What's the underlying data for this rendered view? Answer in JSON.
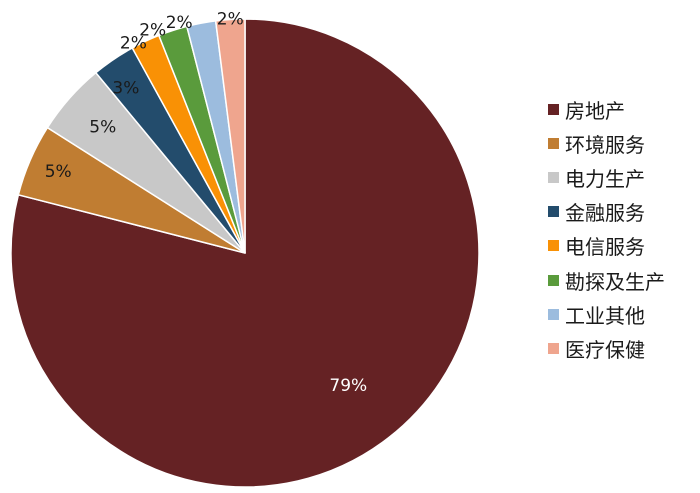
{
  "chart_data": {
    "type": "pie",
    "title": "",
    "start": "12 o'clock, clockwise",
    "legend_position": "right",
    "categories": [
      "房地产",
      "环境服务",
      "电力生产",
      "金融服务",
      "电信服务",
      "勘探及生产",
      "工业其他",
      "医疗保健"
    ],
    "values": [
      79,
      5,
      5,
      3,
      2,
      2,
      2,
      2
    ],
    "labels": [
      "79%",
      "5%",
      "5%",
      "3%",
      "2%",
      "2%",
      "2%",
      "2%"
    ],
    "colors": [
      "#652224",
      "#C07D32",
      "#C8C8C8",
      "#234C6C",
      "#F99105",
      "#5A9B3C",
      "#9CBCDE",
      "#EFA58E"
    ]
  }
}
